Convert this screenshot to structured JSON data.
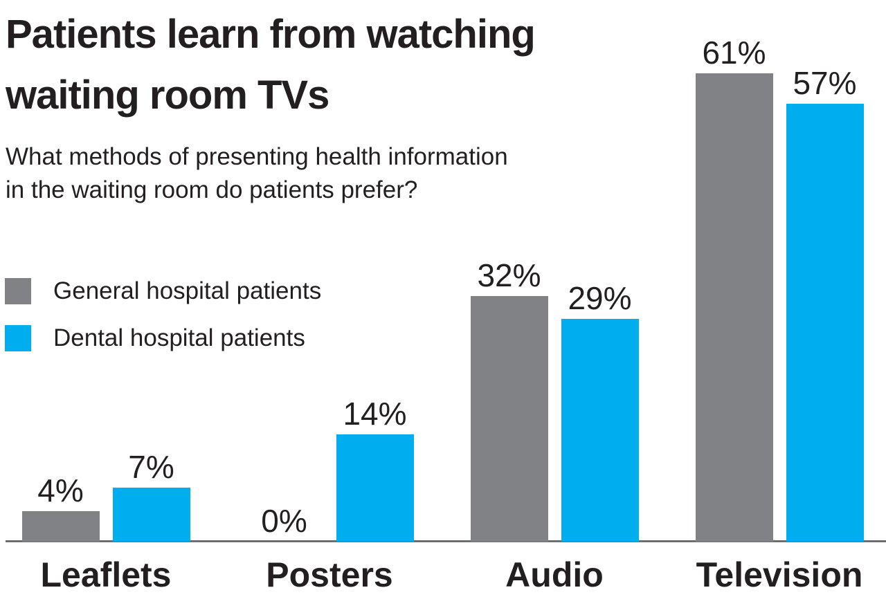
{
  "header": {
    "title_line1": "Patients learn from watching",
    "title_line2": "waiting room TVs",
    "subtitle_line1": "What methods of presenting health information",
    "subtitle_line2": "in the waiting room do patients prefer?"
  },
  "colors": {
    "general_bar": "#808285",
    "dental_bar": "#00aeef",
    "text": "#231f20",
    "axis_line": "#6d6e71",
    "background": "#ffffff"
  },
  "chart_data": {
    "type": "bar",
    "title": "Patients learn from watching waiting room TVs",
    "subtitle": "What methods of presenting health information in the waiting room do patients prefer?",
    "categories": [
      "Leaflets",
      "Posters",
      "Audio",
      "Television"
    ],
    "series": [
      {
        "name": "General hospital patients",
        "color": "#808285",
        "values": [
          4,
          0,
          32,
          61
        ],
        "labels": [
          "4%",
          "0%",
          "32%",
          "61%"
        ]
      },
      {
        "name": "Dental hospital patients",
        "color": "#00aeef",
        "values": [
          7,
          14,
          29,
          57
        ],
        "labels": [
          "7%",
          "14%",
          "29%",
          "57%"
        ]
      }
    ],
    "unit": "%",
    "ylim": [
      0,
      70
    ],
    "grid": false,
    "legend_position": "center-left",
    "value_labels_shown": true,
    "xlabel": "",
    "ylabel": ""
  }
}
